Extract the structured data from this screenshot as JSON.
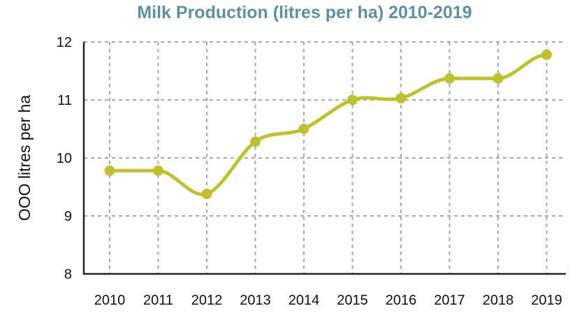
{
  "chart_data": {
    "type": "line",
    "title": "Milk Production (litres per ha) 2010-2019",
    "xlabel": "",
    "ylabel": "OOO litres per ha",
    "x": [
      "2010",
      "2011",
      "2012",
      "2013",
      "2014",
      "2015",
      "2016",
      "2017",
      "2018",
      "2019"
    ],
    "series": [
      {
        "values": [
          9.78,
          9.78,
          9.38,
          10.28,
          10.5,
          11.0,
          11.03,
          11.37,
          11.37,
          11.78
        ]
      }
    ],
    "ylim": [
      8,
      12
    ],
    "yticks": [
      8,
      9,
      10,
      11,
      12
    ],
    "grid": true,
    "colors": {
      "line": "#bfc230",
      "title": "#5f90a0",
      "grid": "#a8a8a8",
      "axis": "#222222"
    }
  }
}
